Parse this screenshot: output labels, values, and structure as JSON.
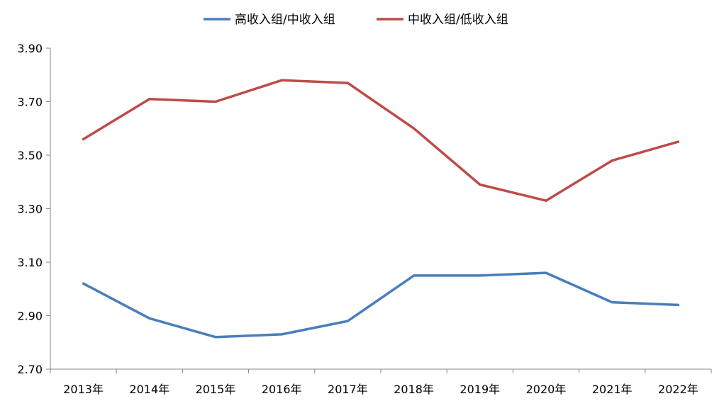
{
  "chart_data": {
    "type": "line",
    "categories": [
      "2013年",
      "2014年",
      "2015年",
      "2016年",
      "2017年",
      "2018年",
      "2019年",
      "2020年",
      "2021年",
      "2022年"
    ],
    "series": [
      {
        "name": "高收入组/中收入组",
        "color": "#4a7ebb",
        "values": [
          3.02,
          2.89,
          2.82,
          2.83,
          2.88,
          3.05,
          3.05,
          3.06,
          2.95,
          2.94
        ]
      },
      {
        "name": "中收入组/低收入组",
        "color": "#be4b48",
        "values": [
          3.56,
          3.71,
          3.7,
          3.78,
          3.77,
          3.6,
          3.39,
          3.33,
          3.48,
          3.55
        ]
      }
    ],
    "y_ticks": [
      "3.90",
      "3.70",
      "3.50",
      "3.30",
      "3.10",
      "2.90",
      "2.70"
    ],
    "ylim": [
      2.7,
      3.9
    ],
    "grid": false,
    "legend_position": "top"
  }
}
